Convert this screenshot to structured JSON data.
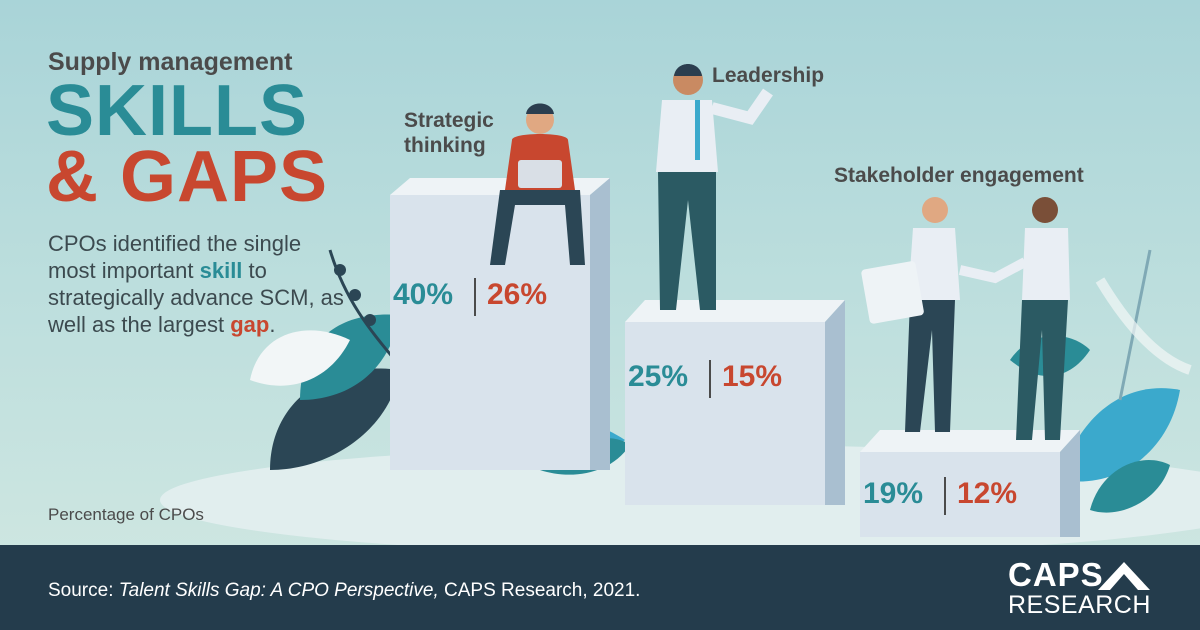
{
  "header": {
    "kicker": "Supply management",
    "title_line1": "SKILLS",
    "title_line2": "& GAPS"
  },
  "description": {
    "part1": "CPOs identified the single most important ",
    "skill_word": "skill",
    "part2": " to strategically advance SCM, as well as the largest ",
    "gap_word": "gap",
    "part3": "."
  },
  "note": "Percentage of CPOs",
  "footer": {
    "source_prefix": "Source: ",
    "source_title": "Talent Skills Gap: A CPO Perspective,",
    "source_suffix": " CAPS Research, 2021.",
    "logo_line1": "CAPS",
    "logo_line2": "RESEARCH"
  },
  "colors": {
    "skill": "#2a8c96",
    "gap": "#c8472f",
    "footer": "#243c4c"
  },
  "chart_data": {
    "type": "bar",
    "categories": [
      "Strategic thinking",
      "Leadership",
      "Stakeholder engagement"
    ],
    "series": [
      {
        "values": [
          40,
          25,
          19
        ],
        "color": "#2a8c96"
      },
      {
        "values": [
          26,
          15,
          12
        ],
        "color": "#c8472f"
      }
    ],
    "labels": {
      "skill": [
        "40%",
        "25%",
        "19%"
      ],
      "gap": [
        "26%",
        "15%",
        "12%"
      ]
    }
  }
}
